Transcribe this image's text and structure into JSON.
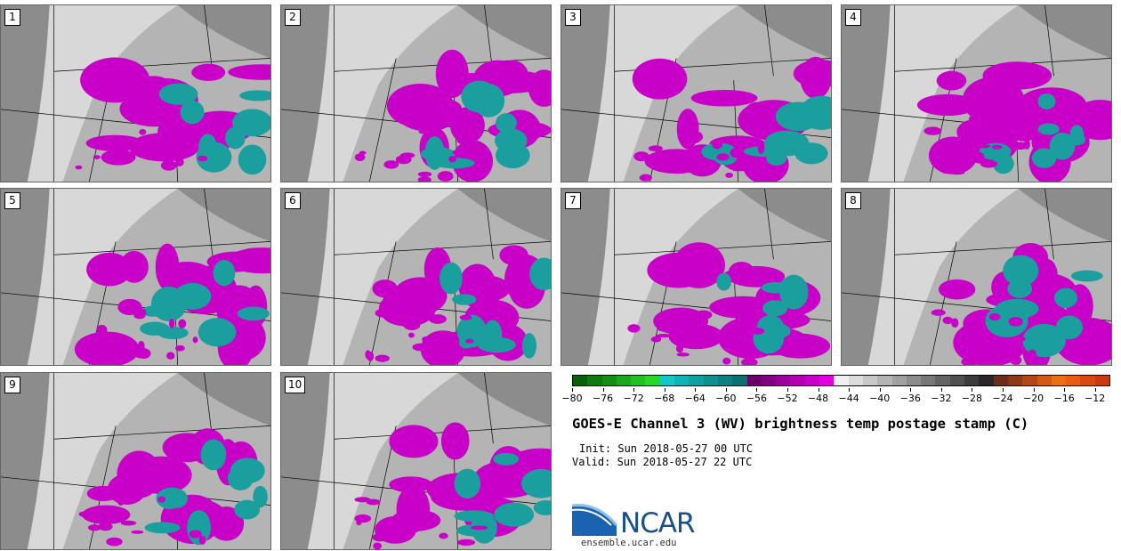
{
  "panels": [
    "1",
    "2",
    "3",
    "4",
    "5",
    "6",
    "7",
    "8",
    "9",
    "10"
  ],
  "title": "GOES-E Channel 3 (WV) brightness temp postage stamp (C)",
  "init": "Init: Sun 2018-05-27 00 UTC",
  "valid": "Valid: Sun 2018-05-27 22 UTC",
  "logo_text": "NCAR",
  "url": "ensemble.ucar.edu",
  "colorbar": {
    "min": -80,
    "max": -10,
    "tick_labels": [
      "−80",
      "−76",
      "−72",
      "−68",
      "−64",
      "−60",
      "−56",
      "−52",
      "−48",
      "−44",
      "−40",
      "−36",
      "−32",
      "−28",
      "−24",
      "−20",
      "−16",
      "−12"
    ],
    "tick_values": [
      -80,
      -76,
      -72,
      -68,
      -64,
      -60,
      -56,
      -52,
      -48,
      -44,
      -40,
      -36,
      -32,
      -28,
      -24,
      -20,
      -16,
      -12
    ],
    "colors": [
      "#0a5f0a",
      "#0f7a0f",
      "#159015",
      "#1ca81c",
      "#22c022",
      "#28d828",
      "#10c8c8",
      "#10b4b4",
      "#10a0a0",
      "#0e9090",
      "#0c8080",
      "#0a7070",
      "#6a006a",
      "#800080",
      "#9a009a",
      "#b000b0",
      "#c800c8",
      "#e000e0",
      "#f0f0f0",
      "#dcdcdc",
      "#c8c8c8",
      "#b4b4b4",
      "#a0a0a0",
      "#8c8c8c",
      "#787878",
      "#646464",
      "#505050",
      "#3c3c3c",
      "#282828",
      "#6e2d18",
      "#8e3a14",
      "#b04818",
      "#d05a16",
      "#ea7016",
      "#e85c14",
      "#d84a12",
      "#c83a10"
    ]
  },
  "colors": {
    "magenta": "#c800c8",
    "teal": "#1a9e9e",
    "land_light": "#d8d8d8",
    "land_mid": "#b4b4b4",
    "land_dark": "#8c8c8c",
    "border": "#000000"
  }
}
